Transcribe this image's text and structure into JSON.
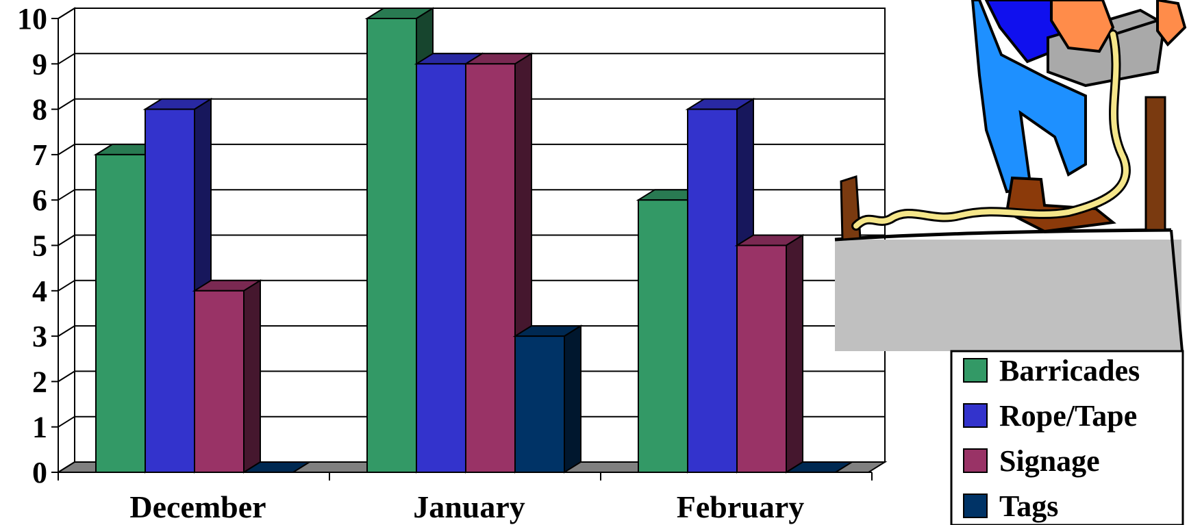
{
  "colors": {
    "Barricades": "#339966",
    "Rope/Tape": "#3333cc",
    "Signage": "#993366",
    "Tags": "#003366",
    "floor": "#808080",
    "illustration_ground": "#c0c0c0"
  },
  "illustration": {
    "icon": "worker-with-rope-icon"
  },
  "chart_data": {
    "type": "bar",
    "style": "3d-clustered-column",
    "title": "",
    "xlabel": "",
    "ylabel": "",
    "categories": [
      "December",
      "January",
      "February"
    ],
    "ylim": [
      0,
      10
    ],
    "yticks": [
      "0",
      "1",
      "2",
      "3",
      "4",
      "5",
      "6",
      "7",
      "8",
      "9",
      "10"
    ],
    "grid": true,
    "legend_position": "right",
    "series": [
      {
        "name": "Barricades",
        "values": [
          7,
          10,
          6
        ]
      },
      {
        "name": "Rope/Tape",
        "values": [
          8,
          9,
          8
        ]
      },
      {
        "name": "Signage",
        "values": [
          4,
          9,
          5
        ]
      },
      {
        "name": "Tags",
        "values": [
          0,
          3,
          0
        ]
      }
    ]
  }
}
